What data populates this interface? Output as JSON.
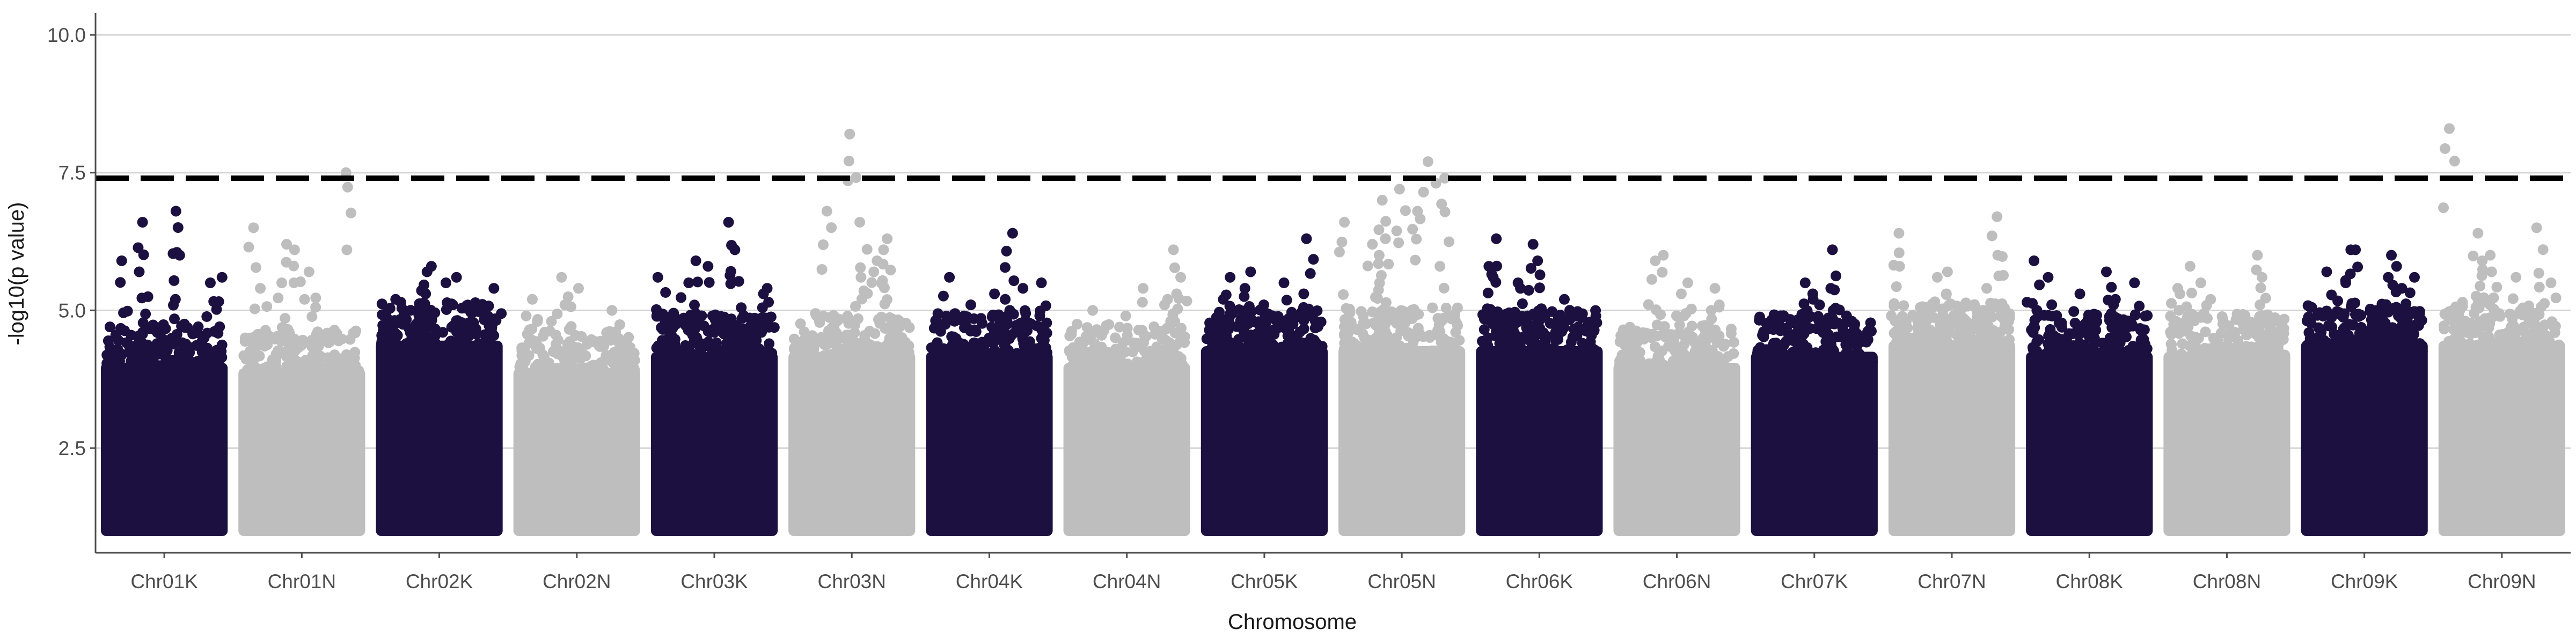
{
  "chart_data": {
    "type": "scatter",
    "subtype": "manhattan",
    "title": "",
    "xlabel": "Chromosome",
    "ylabel": "-log10(p value)",
    "ylim": [
      0.6,
      10.4
    ],
    "y_ticks": [
      2.5,
      5.0,
      7.5,
      10.0
    ],
    "y_tick_labels": [
      "2.5",
      "5.0",
      "7.5",
      "10.0"
    ],
    "grid": "horizontal-major",
    "legend": "none",
    "threshold": {
      "value": 7.4,
      "style": "dashed",
      "color": "#000000"
    },
    "colors": {
      "dark": "#1c1040",
      "light": "#bebebe",
      "grid": "#d4d4d4",
      "axis": "#4d4d4d"
    },
    "categories": [
      "Chr01K",
      "Chr01N",
      "Chr02K",
      "Chr02N",
      "Chr03K",
      "Chr03N",
      "Chr04K",
      "Chr04N",
      "Chr05K",
      "Chr05N",
      "Chr06K",
      "Chr06N",
      "Chr07K",
      "Chr07N",
      "Chr08K",
      "Chr08N",
      "Chr09K",
      "Chr09N"
    ],
    "series": [
      {
        "chromosome": "Chr01K",
        "color": "dark",
        "dense_top": 4.4,
        "top_hits": [
          6.8,
          6.6,
          6.0,
          5.9,
          5.7,
          5.6,
          5.5,
          5.2
        ]
      },
      {
        "chromosome": "Chr01N",
        "color": "light",
        "dense_top": 4.3,
        "top_hits": [
          7.5,
          6.5,
          6.2,
          6.1,
          5.7,
          5.5,
          5.4,
          5.2
        ]
      },
      {
        "chromosome": "Chr02K",
        "color": "dark",
        "dense_top": 4.8,
        "top_hits": [
          5.8,
          5.7,
          5.6,
          5.5,
          5.4,
          5.3,
          5.2,
          5.1
        ]
      },
      {
        "chromosome": "Chr02N",
        "color": "light",
        "dense_top": 4.3,
        "top_hits": [
          5.6,
          5.4,
          5.2,
          5.1,
          5.0,
          4.9,
          4.8,
          4.8
        ]
      },
      {
        "chromosome": "Chr03K",
        "color": "dark",
        "dense_top": 4.6,
        "top_hits": [
          6.6,
          6.1,
          5.9,
          5.8,
          5.6,
          5.5,
          5.4,
          5.3
        ]
      },
      {
        "chromosome": "Chr03N",
        "color": "light",
        "dense_top": 4.6,
        "top_hits": [
          8.2,
          6.8,
          6.6,
          6.3,
          6.1,
          5.9,
          5.7,
          5.6
        ]
      },
      {
        "chromosome": "Chr04K",
        "color": "dark",
        "dense_top": 4.6,
        "top_hits": [
          6.4,
          5.6,
          5.5,
          5.4,
          5.3,
          5.2,
          5.1,
          5.0
        ]
      },
      {
        "chromosome": "Chr04N",
        "color": "light",
        "dense_top": 4.4,
        "top_hits": [
          6.1,
          5.6,
          5.4,
          5.3,
          5.2,
          5.1,
          5.0,
          4.9
        ]
      },
      {
        "chromosome": "Chr05K",
        "color": "dark",
        "dense_top": 4.7,
        "top_hits": [
          6.3,
          5.7,
          5.6,
          5.5,
          5.4,
          5.3,
          5.2,
          5.1
        ]
      },
      {
        "chromosome": "Chr05N",
        "color": "light",
        "dense_top": 4.7,
        "top_hits": [
          7.7,
          7.4,
          7.2,
          7.0,
          6.8,
          6.6,
          6.3,
          6.2,
          6.0,
          5.8
        ]
      },
      {
        "chromosome": "Chr06K",
        "color": "dark",
        "dense_top": 4.7,
        "top_hits": [
          6.3,
          6.2,
          5.9,
          5.8,
          5.6,
          5.5,
          5.4,
          5.2
        ]
      },
      {
        "chromosome": "Chr06N",
        "color": "light",
        "dense_top": 4.4,
        "top_hits": [
          6.0,
          5.9,
          5.5,
          5.4,
          5.3,
          5.1,
          5.0,
          4.9
        ]
      },
      {
        "chromosome": "Chr07K",
        "color": "dark",
        "dense_top": 4.6,
        "top_hits": [
          6.1,
          5.5,
          5.4,
          5.3,
          5.2,
          5.1,
          5.0,
          4.9
        ]
      },
      {
        "chromosome": "Chr07N",
        "color": "light",
        "dense_top": 4.8,
        "top_hits": [
          6.7,
          6.4,
          6.0,
          5.8,
          5.7,
          5.6,
          5.4,
          5.3
        ]
      },
      {
        "chromosome": "Chr08K",
        "color": "dark",
        "dense_top": 4.6,
        "top_hits": [
          5.9,
          5.7,
          5.6,
          5.5,
          5.3,
          5.2,
          5.1,
          5.0
        ]
      },
      {
        "chromosome": "Chr08N",
        "color": "light",
        "dense_top": 4.6,
        "top_hits": [
          6.0,
          5.8,
          5.6,
          5.5,
          5.4,
          5.3,
          5.2,
          5.1
        ]
      },
      {
        "chromosome": "Chr09K",
        "color": "dark",
        "dense_top": 4.8,
        "top_hits": [
          6.1,
          6.1,
          6.0,
          5.8,
          5.7,
          5.6,
          5.5,
          5.4
        ]
      },
      {
        "chromosome": "Chr09N",
        "color": "light",
        "dense_top": 4.8,
        "top_hits": [
          8.3,
          6.5,
          6.4,
          6.0,
          5.9,
          5.7,
          5.6,
          5.5
        ]
      }
    ]
  }
}
